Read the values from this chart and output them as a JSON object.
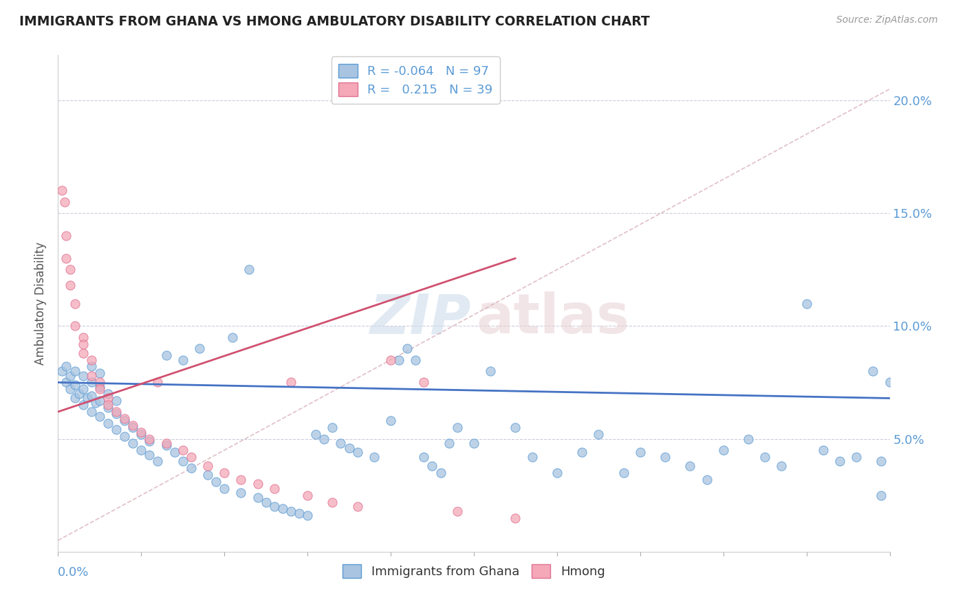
{
  "title": "IMMIGRANTS FROM GHANA VS HMONG AMBULATORY DISABILITY CORRELATION CHART",
  "source": "Source: ZipAtlas.com",
  "ylabel": "Ambulatory Disability",
  "legend_label1": "Immigrants from Ghana",
  "legend_label2": "Hmong",
  "r1": "-0.064",
  "n1": "97",
  "r2": "0.215",
  "n2": "39",
  "color1": "#a8c4e0",
  "color2": "#f4a8b8",
  "edge1_color": "#5b9bd5",
  "edge2_color": "#e07090",
  "line1_color": "#4472c4",
  "line2_color": "#d05070",
  "dashed_color": "#d8b0b8",
  "xlim": [
    0.0,
    0.1
  ],
  "ylim": [
    0.0,
    0.22
  ],
  "ytick_vals": [
    0.05,
    0.1,
    0.15,
    0.2
  ],
  "ytick_labels": [
    "5.0%",
    "10.0%",
    "15.0%",
    "20.0%"
  ],
  "ghana_x": [
    0.0005,
    0.001,
    0.001,
    0.0015,
    0.0015,
    0.002,
    0.002,
    0.002,
    0.0025,
    0.003,
    0.003,
    0.003,
    0.0035,
    0.004,
    0.004,
    0.004,
    0.004,
    0.0045,
    0.005,
    0.005,
    0.005,
    0.005,
    0.006,
    0.006,
    0.006,
    0.007,
    0.007,
    0.007,
    0.008,
    0.008,
    0.009,
    0.009,
    0.01,
    0.01,
    0.011,
    0.011,
    0.012,
    0.013,
    0.013,
    0.014,
    0.015,
    0.015,
    0.016,
    0.017,
    0.018,
    0.019,
    0.02,
    0.021,
    0.022,
    0.023,
    0.024,
    0.025,
    0.026,
    0.027,
    0.028,
    0.029,
    0.03,
    0.031,
    0.032,
    0.033,
    0.034,
    0.035,
    0.036,
    0.038,
    0.04,
    0.041,
    0.042,
    0.043,
    0.044,
    0.045,
    0.046,
    0.047,
    0.048,
    0.05,
    0.052,
    0.055,
    0.057,
    0.06,
    0.063,
    0.065,
    0.068,
    0.07,
    0.073,
    0.076,
    0.078,
    0.08,
    0.083,
    0.085,
    0.087,
    0.09,
    0.092,
    0.094,
    0.096,
    0.098,
    0.099,
    0.099,
    0.1
  ],
  "ghana_y": [
    0.08,
    0.075,
    0.082,
    0.072,
    0.078,
    0.068,
    0.074,
    0.08,
    0.07,
    0.065,
    0.072,
    0.078,
    0.068,
    0.062,
    0.069,
    0.075,
    0.082,
    0.066,
    0.06,
    0.067,
    0.073,
    0.079,
    0.057,
    0.064,
    0.07,
    0.054,
    0.061,
    0.067,
    0.051,
    0.058,
    0.048,
    0.055,
    0.045,
    0.052,
    0.043,
    0.049,
    0.04,
    0.087,
    0.047,
    0.044,
    0.04,
    0.085,
    0.037,
    0.09,
    0.034,
    0.031,
    0.028,
    0.095,
    0.026,
    0.125,
    0.024,
    0.022,
    0.02,
    0.019,
    0.018,
    0.017,
    0.016,
    0.052,
    0.05,
    0.055,
    0.048,
    0.046,
    0.044,
    0.042,
    0.058,
    0.085,
    0.09,
    0.085,
    0.042,
    0.038,
    0.035,
    0.048,
    0.055,
    0.048,
    0.08,
    0.055,
    0.042,
    0.035,
    0.044,
    0.052,
    0.035,
    0.044,
    0.042,
    0.038,
    0.032,
    0.045,
    0.05,
    0.042,
    0.038,
    0.11,
    0.045,
    0.04,
    0.042,
    0.08,
    0.025,
    0.04,
    0.075
  ],
  "hmong_x": [
    0.0005,
    0.0008,
    0.001,
    0.001,
    0.0015,
    0.0015,
    0.002,
    0.002,
    0.003,
    0.003,
    0.003,
    0.004,
    0.004,
    0.005,
    0.005,
    0.006,
    0.006,
    0.007,
    0.008,
    0.009,
    0.01,
    0.011,
    0.012,
    0.013,
    0.015,
    0.016,
    0.018,
    0.02,
    0.022,
    0.024,
    0.026,
    0.028,
    0.03,
    0.033,
    0.036,
    0.04,
    0.044,
    0.048,
    0.055
  ],
  "hmong_y": [
    0.16,
    0.155,
    0.14,
    0.13,
    0.125,
    0.118,
    0.11,
    0.1,
    0.095,
    0.092,
    0.088,
    0.085,
    0.078,
    0.075,
    0.072,
    0.068,
    0.065,
    0.062,
    0.059,
    0.056,
    0.053,
    0.05,
    0.075,
    0.048,
    0.045,
    0.042,
    0.038,
    0.035,
    0.032,
    0.03,
    0.028,
    0.075,
    0.025,
    0.022,
    0.02,
    0.085,
    0.075,
    0.018,
    0.015
  ],
  "ghana_trend_x": [
    0.0,
    0.1
  ],
  "ghana_trend_y": [
    0.075,
    0.068
  ],
  "hmong_trend_x": [
    0.0,
    0.055
  ],
  "hmong_trend_y": [
    0.062,
    0.13
  ],
  "diag_trend_x": [
    0.0,
    0.1
  ],
  "diag_trend_y": [
    0.005,
    0.205
  ]
}
